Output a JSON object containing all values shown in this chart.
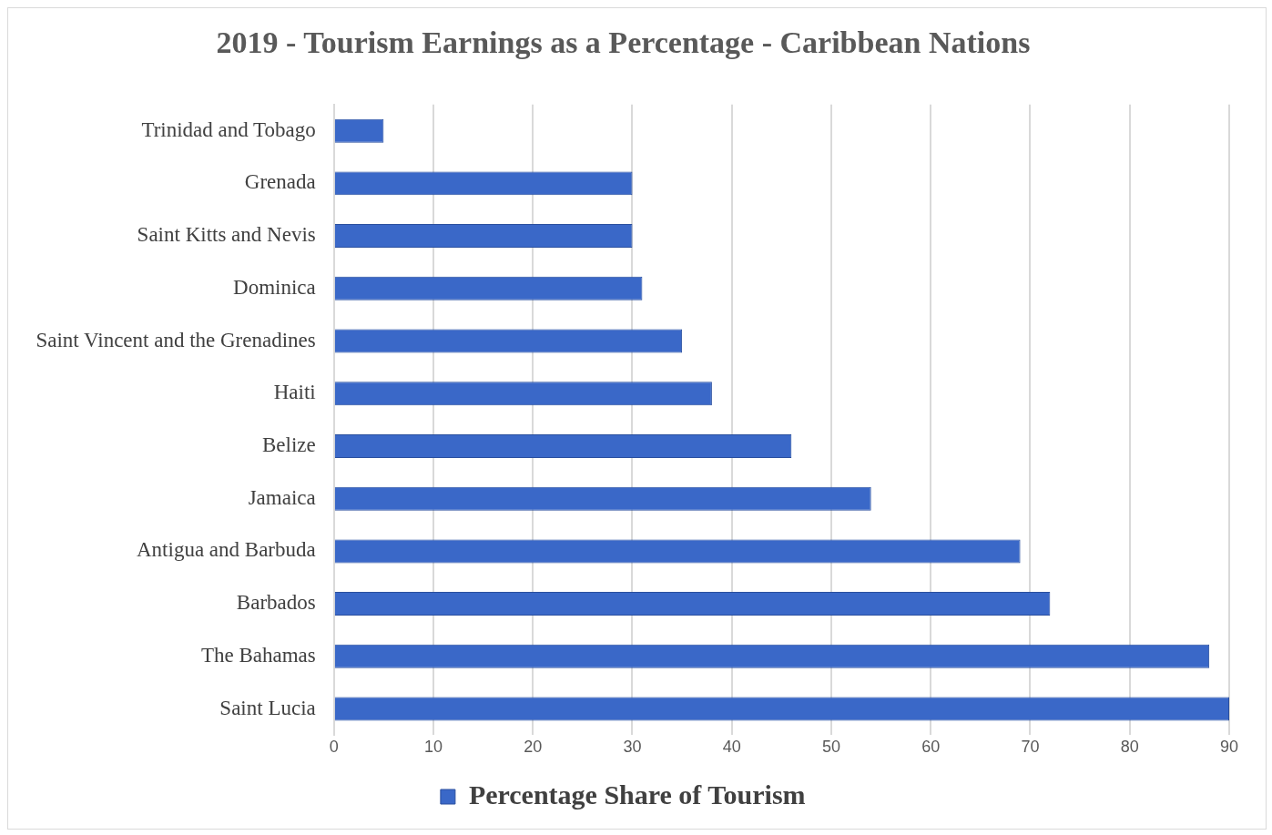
{
  "chart_data": {
    "type": "bar",
    "orientation": "horizontal",
    "title": "2019 - Tourism Earnings as a Percentage - Caribbean Nations",
    "categories": [
      "Trinidad and Tobago",
      "Grenada",
      "Saint Kitts and Nevis",
      "Dominica",
      "Saint Vincent and the Grenadines",
      "Haiti",
      "Belize",
      "Jamaica",
      "Antigua and Barbuda",
      "Barbados",
      "The Bahamas",
      "Saint Lucia"
    ],
    "series": [
      {
        "name": "Percentage Share of Tourism",
        "color": "#3a68c8",
        "values": [
          5,
          30,
          30,
          31,
          35,
          38,
          46,
          54,
          69,
          72,
          88,
          90
        ]
      }
    ],
    "xlim": [
      0,
      90
    ],
    "xticks": [
      0,
      10,
      20,
      30,
      40,
      50,
      60,
      70,
      80,
      90
    ],
    "grid": "x",
    "legend": "bottom"
  }
}
